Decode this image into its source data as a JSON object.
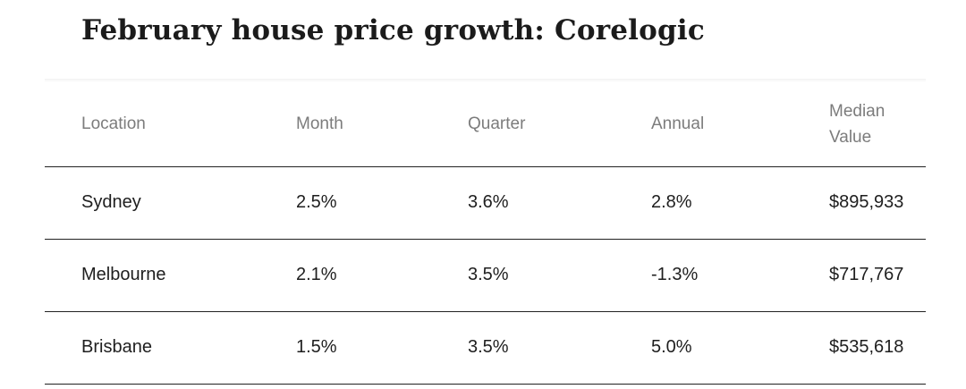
{
  "title": "February house price growth: Corelogic",
  "table": {
    "headers": {
      "location": "Location",
      "month": "Month",
      "quarter": "Quarter",
      "annual": "Annual",
      "median_line1": "Median",
      "median_line2": "Value"
    },
    "rows": [
      {
        "location": "Sydney",
        "month": "2.5%",
        "quarter": "3.6%",
        "annual": "2.8%",
        "median": "$895,933"
      },
      {
        "location": "Melbourne",
        "month": "2.1%",
        "quarter": "3.5%",
        "annual": "-1.3%",
        "median": "$717,767"
      },
      {
        "location": "Brisbane",
        "month": "1.5%",
        "quarter": "3.5%",
        "annual": "5.0%",
        "median": "$535,618"
      }
    ]
  }
}
